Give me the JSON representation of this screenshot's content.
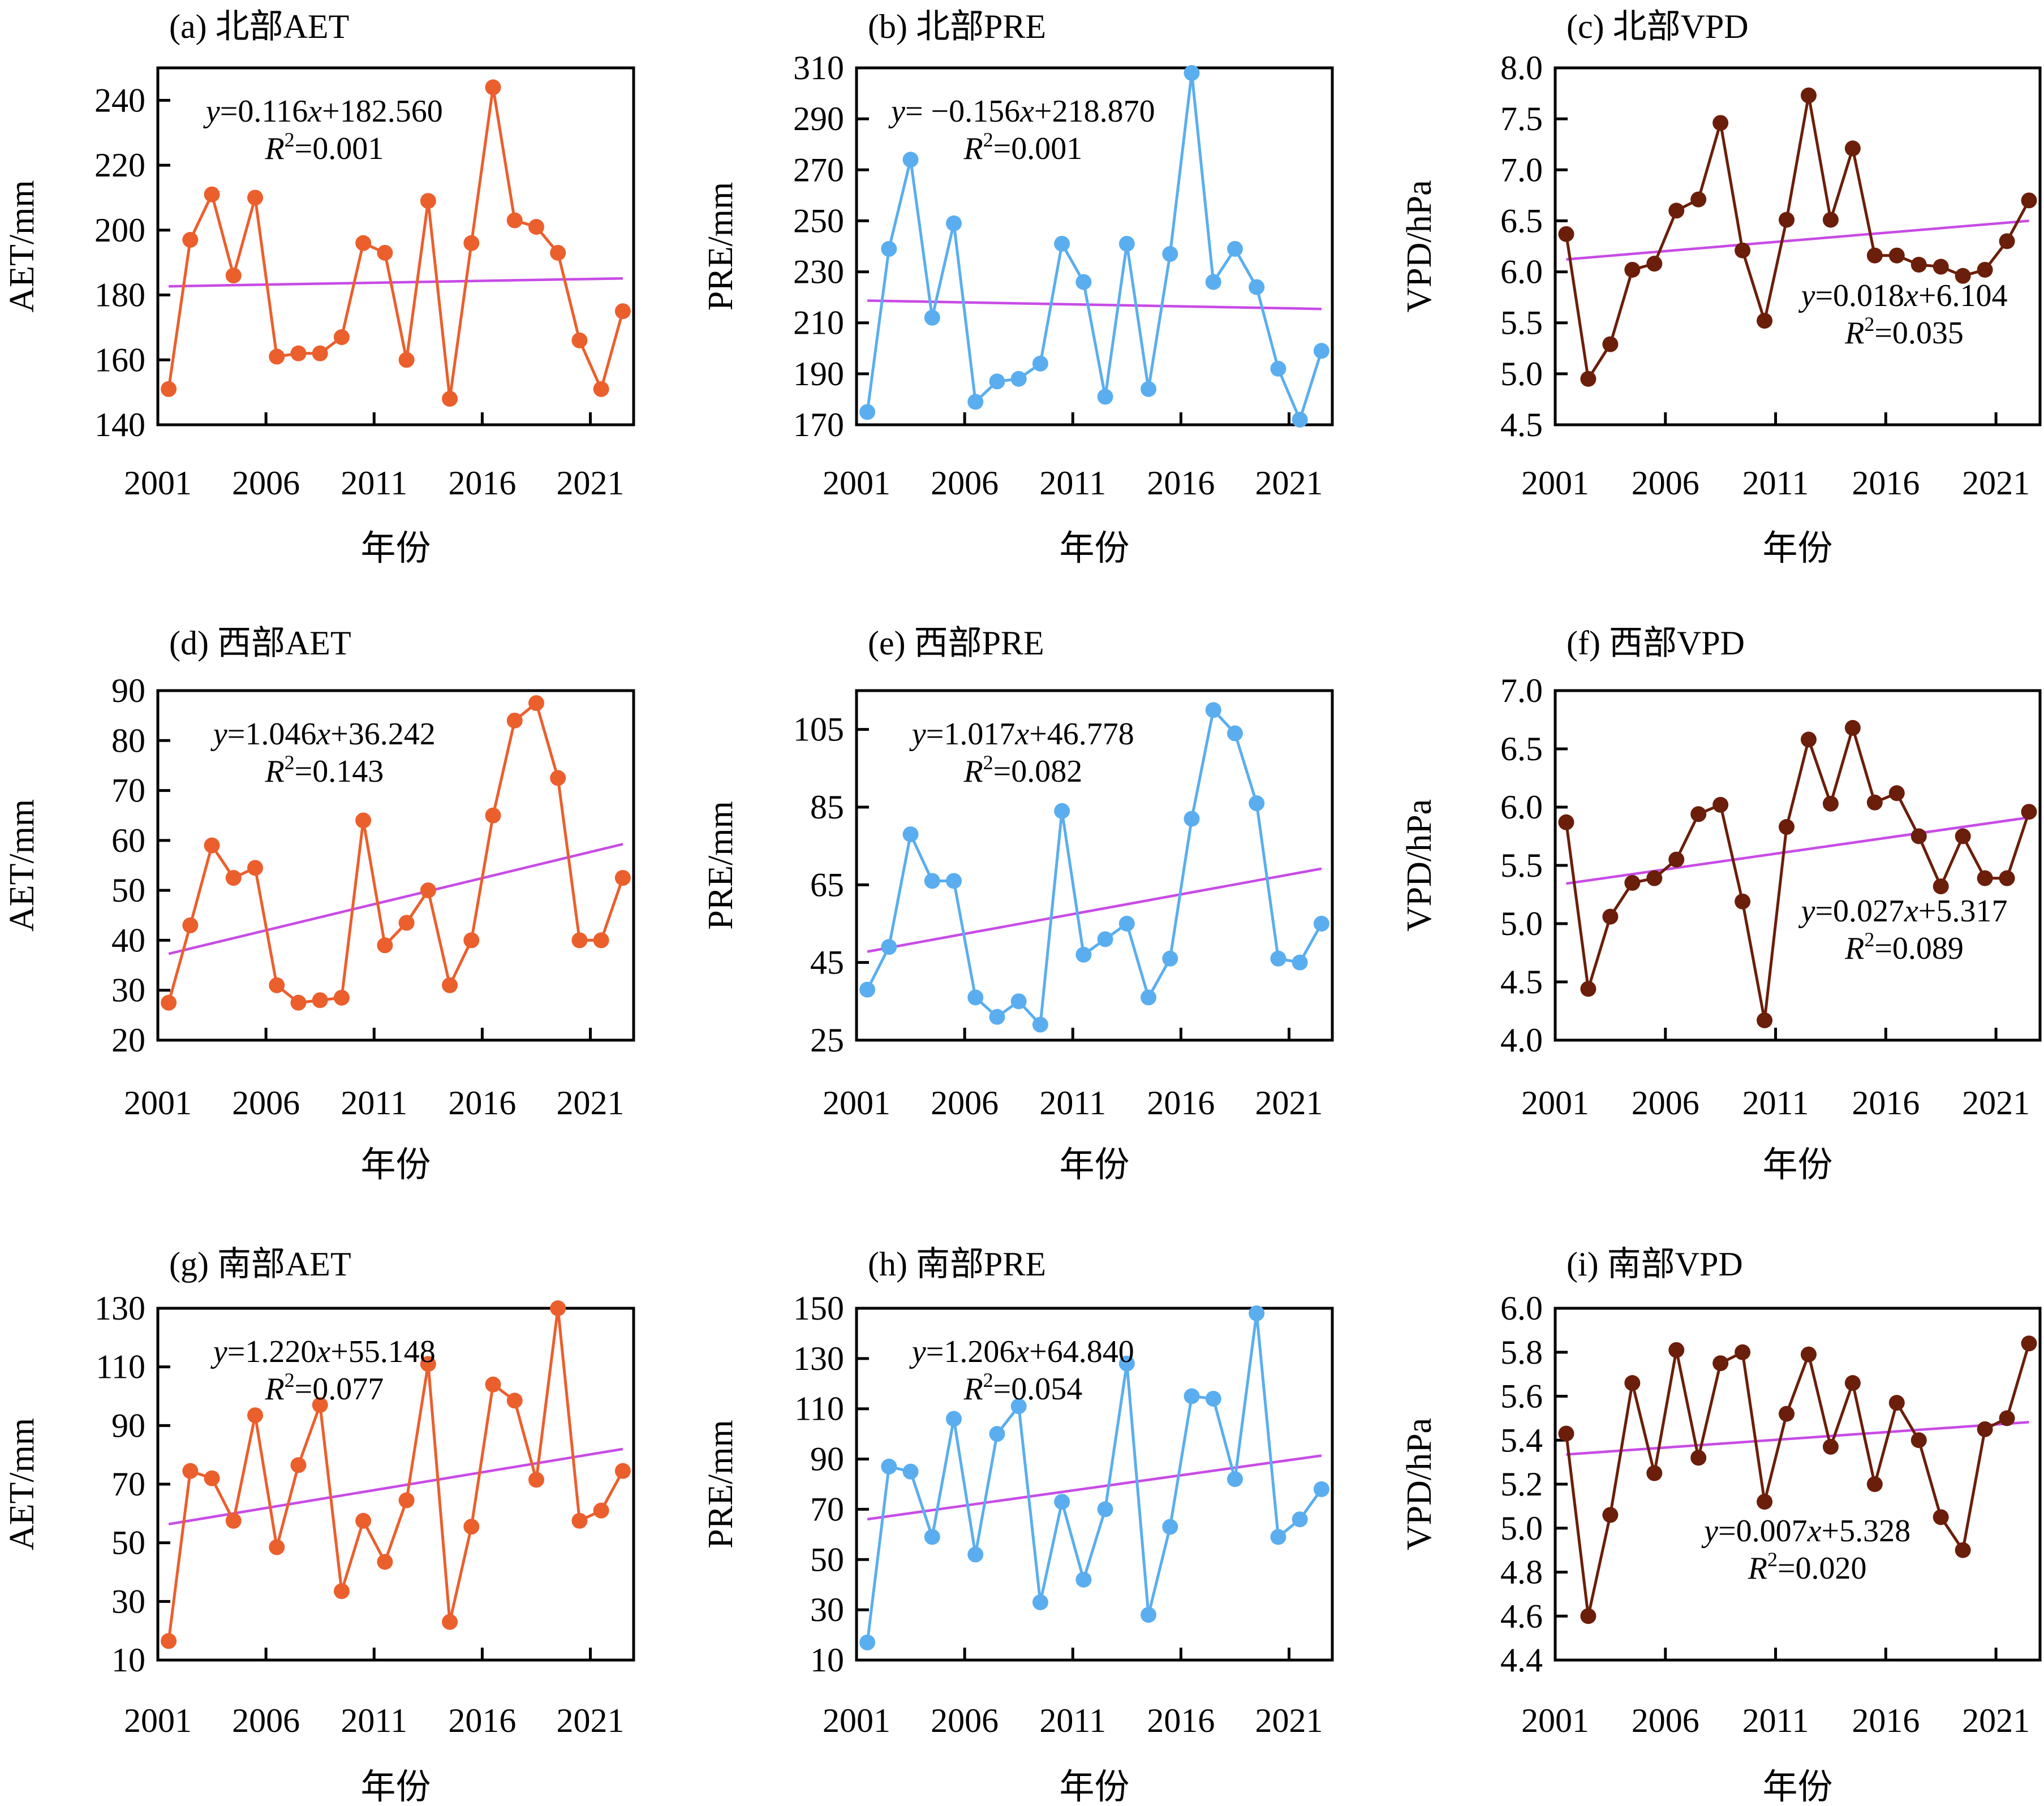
{
  "figure": {
    "x_axis_label": "年份",
    "x_tick_labels": [
      "2001",
      "2006",
      "2011",
      "2016",
      "2021"
    ],
    "years": [
      2001,
      2002,
      2003,
      2004,
      2005,
      2006,
      2007,
      2008,
      2009,
      2010,
      2011,
      2012,
      2013,
      2014,
      2015,
      2016,
      2017,
      2018,
      2019,
      2020,
      2021,
      2022
    ]
  },
  "colors": {
    "aet": "#eb5f2d",
    "pre": "#5aaeef",
    "vpd": "#6b1e0a",
    "trend": "#c84be6",
    "axis": "#000000"
  },
  "chart_data": [
    {
      "id": "a",
      "type": "line",
      "title": "(a) 北部AET",
      "xlabel": "年份",
      "ylabel": "AET/mm",
      "variable": "aet",
      "ylim": [
        140,
        250
      ],
      "yticks": [
        140,
        160,
        180,
        200,
        220,
        240
      ],
      "values": [
        151,
        197,
        211,
        186,
        210,
        161,
        162,
        162,
        167,
        196,
        193,
        160,
        209,
        148,
        196,
        244,
        203,
        201,
        193,
        166,
        151,
        175
      ],
      "trend": {
        "slope": 0.116,
        "intercept": 182.56,
        "equation_y": "y",
        "equation_rest": "=0.116",
        "equation_x": "x",
        "equation_tail": "+182.560",
        "r2_label": "R",
        "r2_value": "=0.001",
        "position": "top-left"
      },
      "grid": false,
      "legend": "none"
    },
    {
      "id": "b",
      "type": "line",
      "title": "(b) 北部PRE",
      "xlabel": "年份",
      "ylabel": "PRE/mm",
      "variable": "pre",
      "ylim": [
        170,
        310
      ],
      "yticks": [
        170,
        190,
        210,
        230,
        250,
        270,
        290,
        310
      ],
      "values": [
        175,
        239,
        274,
        212,
        249,
        179,
        187,
        188,
        194,
        241,
        226,
        181,
        241,
        184,
        237,
        308,
        226,
        239,
        224,
        192,
        172,
        199
      ],
      "trend": {
        "slope": -0.156,
        "intercept": 218.87,
        "equation_y": "y",
        "equation_rest": "= −0.156",
        "equation_x": "x",
        "equation_tail": "+218.870",
        "r2_label": "R",
        "r2_value": "=0.001",
        "position": "top-left"
      },
      "grid": false,
      "legend": "none"
    },
    {
      "id": "c",
      "type": "line",
      "title": "(c) 北部VPD",
      "xlabel": "年份",
      "ylabel": "VPD/hPa",
      "variable": "vpd",
      "ylim": [
        4.5,
        8.0
      ],
      "yticks": [
        4.5,
        5.0,
        5.5,
        6.0,
        6.5,
        7.0,
        7.5,
        8.0
      ],
      "values": [
        6.37,
        4.95,
        5.29,
        6.02,
        6.08,
        6.6,
        6.71,
        7.46,
        6.21,
        5.52,
        6.51,
        7.73,
        6.51,
        7.21,
        6.16,
        6.16,
        6.07,
        6.05,
        5.96,
        6.02,
        6.3,
        6.7
      ],
      "trend": {
        "slope": 0.018,
        "intercept": 6.104,
        "equation_y": "y",
        "equation_rest": "=0.018",
        "equation_x": "x",
        "equation_tail": "+6.104",
        "r2_label": "R",
        "r2_value": "=0.035",
        "position": "bottom-right"
      },
      "grid": false,
      "legend": "none"
    },
    {
      "id": "d",
      "type": "line",
      "title": "(d) 西部AET",
      "xlabel": "年份",
      "ylabel": "AET/mm",
      "variable": "aet",
      "ylim": [
        20,
        90
      ],
      "yticks": [
        20,
        30,
        40,
        50,
        60,
        70,
        80,
        90
      ],
      "values": [
        27.5,
        43,
        59,
        52.5,
        54.5,
        31,
        27.5,
        28,
        28.5,
        64,
        39,
        43.5,
        50,
        31,
        40,
        65,
        84,
        87.5,
        72.5,
        40,
        40,
        52.5
      ],
      "trend": {
        "slope": 1.046,
        "intercept": 36.242,
        "equation_y": "y",
        "equation_rest": "=1.046",
        "equation_x": "x",
        "equation_tail": "+36.242",
        "r2_label": "R",
        "r2_value": "=0.143",
        "position": "top-left"
      },
      "grid": false,
      "legend": "none"
    },
    {
      "id": "e",
      "type": "line",
      "title": "(e) 西部PRE",
      "xlabel": "年份",
      "ylabel": "PRE/mm",
      "variable": "pre",
      "ylim": [
        25,
        115
      ],
      "yticks": [
        25,
        45,
        65,
        85,
        105
      ],
      "values": [
        38,
        49,
        78,
        66,
        66,
        36,
        31,
        35,
        29,
        84,
        47,
        51,
        55,
        36,
        46,
        82,
        110,
        104,
        86,
        46,
        45,
        55
      ],
      "trend": {
        "slope": 1.017,
        "intercept": 46.778,
        "equation_y": "y",
        "equation_rest": "=1.017",
        "equation_x": "x",
        "equation_tail": "+46.778",
        "r2_label": "R",
        "r2_value": "=0.082",
        "position": "top-left"
      },
      "grid": false,
      "legend": "none"
    },
    {
      "id": "f",
      "type": "line",
      "title": "(f) 西部VPD",
      "xlabel": "年份",
      "ylabel": "VPD/hPa",
      "variable": "vpd",
      "ylim": [
        4.0,
        7.0
      ],
      "yticks": [
        4.0,
        4.5,
        5.0,
        5.5,
        6.0,
        6.5,
        7.0
      ],
      "values": [
        5.87,
        4.44,
        5.06,
        5.35,
        5.39,
        5.55,
        5.94,
        6.02,
        5.19,
        4.17,
        5.83,
        6.58,
        6.03,
        6.68,
        6.04,
        6.12,
        5.75,
        5.32,
        5.75,
        5.39,
        5.39,
        5.96
      ],
      "trend": {
        "slope": 0.027,
        "intercept": 5.317,
        "equation_y": "y",
        "equation_rest": "=0.027",
        "equation_x": "x",
        "equation_tail": "+5.317",
        "r2_label": "R",
        "r2_value": "=0.089",
        "position": "bottom-right"
      },
      "grid": false,
      "legend": "none"
    },
    {
      "id": "g",
      "type": "line",
      "title": "(g) 南部AET",
      "xlabel": "年份",
      "ylabel": "AET/mm",
      "variable": "aet",
      "ylim": [
        10,
        130
      ],
      "yticks": [
        10,
        30,
        50,
        70,
        90,
        110,
        130
      ],
      "values": [
        16.5,
        74.5,
        72,
        57.5,
        93.5,
        48.5,
        76.5,
        97,
        33.5,
        57.5,
        43.5,
        64.5,
        111,
        23,
        55.5,
        104,
        98.5,
        71.5,
        130,
        57.5,
        61,
        74.5
      ],
      "trend": {
        "slope": 1.22,
        "intercept": 55.148,
        "equation_y": "y",
        "equation_rest": "=1.220",
        "equation_x": "x",
        "equation_tail": "+55.148",
        "r2_label": "R",
        "r2_value": "=0.077",
        "position": "top-left"
      },
      "grid": false,
      "legend": "none"
    },
    {
      "id": "h",
      "type": "line",
      "title": "(h) 南部PRE",
      "xlabel": "年份",
      "ylabel": "PRE/mm",
      "variable": "pre",
      "ylim": [
        10,
        150
      ],
      "yticks": [
        10,
        30,
        50,
        70,
        90,
        110,
        130,
        150
      ],
      "values": [
        17,
        87,
        85,
        59,
        106,
        52,
        100,
        111,
        33,
        73,
        42,
        70,
        128,
        28,
        63,
        115,
        114,
        82,
        148,
        59,
        66,
        78
      ],
      "trend": {
        "slope": 1.206,
        "intercept": 64.84,
        "equation_y": "y",
        "equation_rest": "=1.206",
        "equation_x": "x",
        "equation_tail": "+64.840",
        "r2_label": "R",
        "r2_value": "=0.054",
        "position": "top-left"
      },
      "grid": false,
      "legend": "none"
    },
    {
      "id": "i",
      "type": "line",
      "title": "(i) 南部VPD",
      "xlabel": "年份",
      "ylabel": "VPD/hPa",
      "variable": "vpd",
      "ylim": [
        4.4,
        6.0
      ],
      "yticks": [
        4.4,
        4.6,
        4.8,
        5.0,
        5.2,
        5.4,
        5.6,
        5.8,
        6.0
      ],
      "values": [
        5.43,
        4.6,
        5.06,
        5.66,
        5.25,
        5.81,
        5.32,
        5.75,
        5.8,
        5.12,
        5.52,
        5.79,
        5.37,
        5.66,
        5.2,
        5.57,
        5.4,
        5.05,
        4.9,
        5.45,
        5.5,
        5.84
      ],
      "trend": {
        "slope": 0.007,
        "intercept": 5.328,
        "equation_y": "y",
        "equation_rest": "=0.007",
        "equation_x": "x",
        "equation_tail": "+5.328",
        "r2_label": "R",
        "r2_value": "=0.020",
        "position": "bottom-center"
      },
      "grid": false,
      "legend": "none"
    }
  ]
}
